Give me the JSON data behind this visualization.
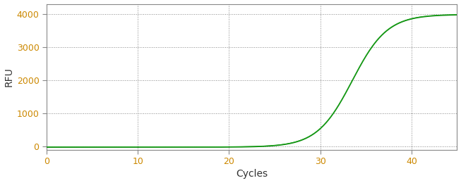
{
  "title": "",
  "xlabel": "Cycles",
  "ylabel": "RFU",
  "xlim": [
    0,
    45
  ],
  "ylim": [
    -100,
    4300
  ],
  "yticks": [
    0,
    1000,
    2000,
    3000,
    4000
  ],
  "xticks": [
    0,
    10,
    20,
    30,
    40
  ],
  "line_color1": "#008000",
  "line_color2": "#22aa22",
  "background_color": "#ffffff",
  "plot_bg_color": "#ffffff",
  "grid_color": "#555555",
  "tick_label_color": "#cc8800",
  "axis_label_color": "#333333",
  "sigmoid_L": 4000,
  "sigmoid_k": 0.52,
  "sigmoid_x0": 33.5,
  "x_start": 0,
  "x_end": 45
}
